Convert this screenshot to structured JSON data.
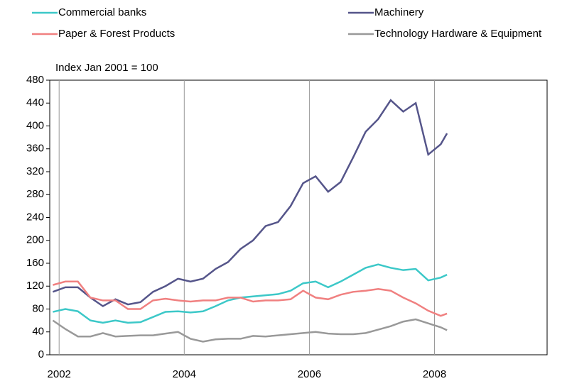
{
  "chart_data": {
    "type": "line",
    "y_label": "Index Jan 2001 = 100",
    "x": [
      2001.9,
      2002.1,
      2002.3,
      2002.5,
      2002.7,
      2002.9,
      2003.1,
      2003.3,
      2003.5,
      2003.7,
      2003.9,
      2004.1,
      2004.3,
      2004.5,
      2004.7,
      2004.9,
      2005.1,
      2005.3,
      2005.5,
      2005.7,
      2005.9,
      2006.1,
      2006.3,
      2006.5,
      2006.7,
      2006.9,
      2007.1,
      2007.3,
      2007.5,
      2007.7,
      2007.9,
      2008.1,
      2008.2
    ],
    "series": [
      {
        "name": "Commercial banks",
        "color": "#3cc8c8",
        "values": [
          75,
          80,
          76,
          60,
          56,
          60,
          56,
          57,
          66,
          75,
          76,
          74,
          76,
          85,
          95,
          100,
          102,
          104,
          106,
          112,
          125,
          128,
          118,
          128,
          140,
          152,
          158,
          152,
          148,
          150,
          130,
          135,
          140
        ]
      },
      {
        "name": "Machinery",
        "color": "#55558a",
        "values": [
          110,
          118,
          118,
          100,
          85,
          97,
          88,
          92,
          110,
          120,
          133,
          128,
          133,
          150,
          162,
          185,
          200,
          225,
          232,
          260,
          300,
          312,
          285,
          302,
          345,
          390,
          412,
          445,
          425,
          440,
          350,
          368,
          387
        ]
      },
      {
        "name": "Paper & Forest Products",
        "color": "#f08080",
        "values": [
          122,
          128,
          128,
          100,
          95,
          95,
          80,
          80,
          95,
          98,
          95,
          93,
          95,
          95,
          100,
          100,
          93,
          95,
          95,
          97,
          112,
          100,
          97,
          105,
          110,
          112,
          115,
          112,
          100,
          90,
          77,
          68,
          72
        ]
      },
      {
        "name": "Technology Hardware & Equipment",
        "color": "#999999",
        "values": [
          60,
          45,
          32,
          32,
          38,
          32,
          33,
          34,
          34,
          37,
          40,
          28,
          23,
          27,
          28,
          28,
          33,
          32,
          34,
          36,
          38,
          40,
          37,
          36,
          36,
          38,
          44,
          50,
          58,
          62,
          55,
          48,
          43
        ]
      }
    ],
    "xlim": [
      2001.85,
      2009.8
    ],
    "xticks": [
      2002,
      2004,
      2006,
      2008
    ],
    "ylim": [
      0,
      480
    ],
    "yticks": [
      0,
      40,
      80,
      120,
      160,
      200,
      240,
      280,
      320,
      360,
      400,
      440,
      480
    ],
    "grid": "x"
  }
}
